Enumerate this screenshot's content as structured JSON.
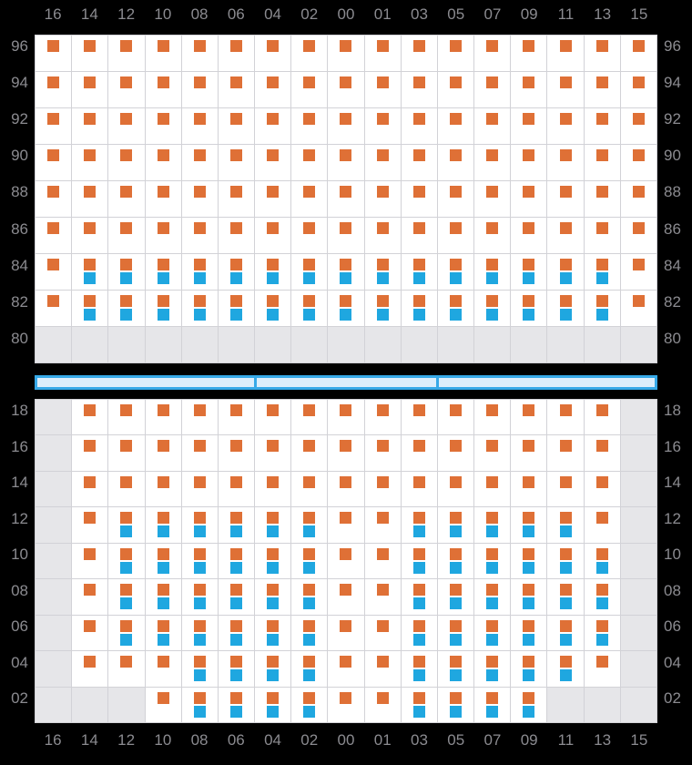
{
  "colors": {
    "background": "#000000",
    "label": "#8b8b90",
    "cell_white": "#ffffff",
    "cell_gray": "#e6e6e9",
    "gridline": "#d2d2d7",
    "orange": "#df7036",
    "blue": "#1fa7e0",
    "aisle_fill": "#dceefb",
    "aisle_border": "#36a9e8"
  },
  "column_labels": [
    "16",
    "14",
    "12",
    "10",
    "08",
    "06",
    "04",
    "02",
    "00",
    "01",
    "03",
    "05",
    "07",
    "09",
    "11",
    "13",
    "15"
  ],
  "cell_legend": {
    "O": "orange marker only",
    "B": "orange marker with blue marker below",
    "G": "gray blocked cell, no markers"
  },
  "panels": [
    {
      "id": "upper",
      "row_labels": [
        "96",
        "94",
        "92",
        "90",
        "88",
        "86",
        "84",
        "82",
        "80"
      ],
      "cells": [
        "OOOOOOOOOOOOOOOOO",
        "OOOOOOOOOOOOOOOOO",
        "OOOOOOOOOOOOOOOOO",
        "OOOOOOOOOOOOOOOOO",
        "OOOOOOOOOOOOOOOOO",
        "OOOOOOOOOOOOOOOOO",
        "OBBBBBBBBBBBBBBBO",
        "OBBBBBBBBBBBBBBBO",
        "GGGGGGGGGGGGGGGGG"
      ]
    },
    {
      "id": "lower",
      "row_labels": [
        "18",
        "16",
        "14",
        "12",
        "10",
        "08",
        "06",
        "04",
        "02"
      ],
      "cells": [
        "GOOOOOOOOOOOOOOOG",
        "GOOOOOOOOOOOOOOOG",
        "GOOOOOOOOOOOOOOOG",
        "GOBBBBBBOOBBBBBOG",
        "GOBBBBBBOOBBBBBBG",
        "GOBBBBBBOOBBBBBBG",
        "GOBBBBBBOOBBBBBBG",
        "GOOOBBBBOOBBBBBOG",
        "GGGOBBBBOOBBBBGGG"
      ]
    }
  ],
  "aisle": {
    "segments": 3,
    "divider_positions_cols": [
      6,
      11
    ]
  },
  "chart_data": {
    "type": "heatmap",
    "title": "",
    "xlabel": "",
    "ylabel": "",
    "x_categories": [
      "16",
      "14",
      "12",
      "10",
      "08",
      "06",
      "04",
      "02",
      "00",
      "01",
      "03",
      "05",
      "07",
      "09",
      "11",
      "13",
      "15"
    ],
    "upper_row_categories": [
      "96",
      "94",
      "92",
      "90",
      "88",
      "86",
      "84",
      "82",
      "80"
    ],
    "lower_row_categories": [
      "18",
      "16",
      "14",
      "12",
      "10",
      "08",
      "06",
      "04",
      "02"
    ],
    "value_codes": {
      "O": "orange",
      "B": "orange+blue",
      "G": "gray-blocked"
    },
    "upper_values": [
      "OOOOOOOOOOOOOOOOO",
      "OOOOOOOOOOOOOOOOO",
      "OOOOOOOOOOOOOOOOO",
      "OOOOOOOOOOOOOOOOO",
      "OOOOOOOOOOOOOOOOO",
      "OOOOOOOOOOOOOOOOO",
      "OBBBBBBBBBBBBBBBO",
      "OBBBBBBBBBBBBBBBO",
      "GGGGGGGGGGGGGGGGG"
    ],
    "lower_values": [
      "GOOOOOOOOOOOOOOOG",
      "GOOOOOOOOOOOOOOOG",
      "GOOOOOOOOOOOOOOOG",
      "GOBBBBBBOOBBBBBOG",
      "GOBBBBBBOOBBBBBBG",
      "GOBBBBBBOOBBBBBBG",
      "GOBBBBBBOOBBBBBBG",
      "GOOOBBBBOOBBBBBOG",
      "GGGOBBBBOOBBBBGGG"
    ],
    "legend_position": "none",
    "grid": true
  }
}
